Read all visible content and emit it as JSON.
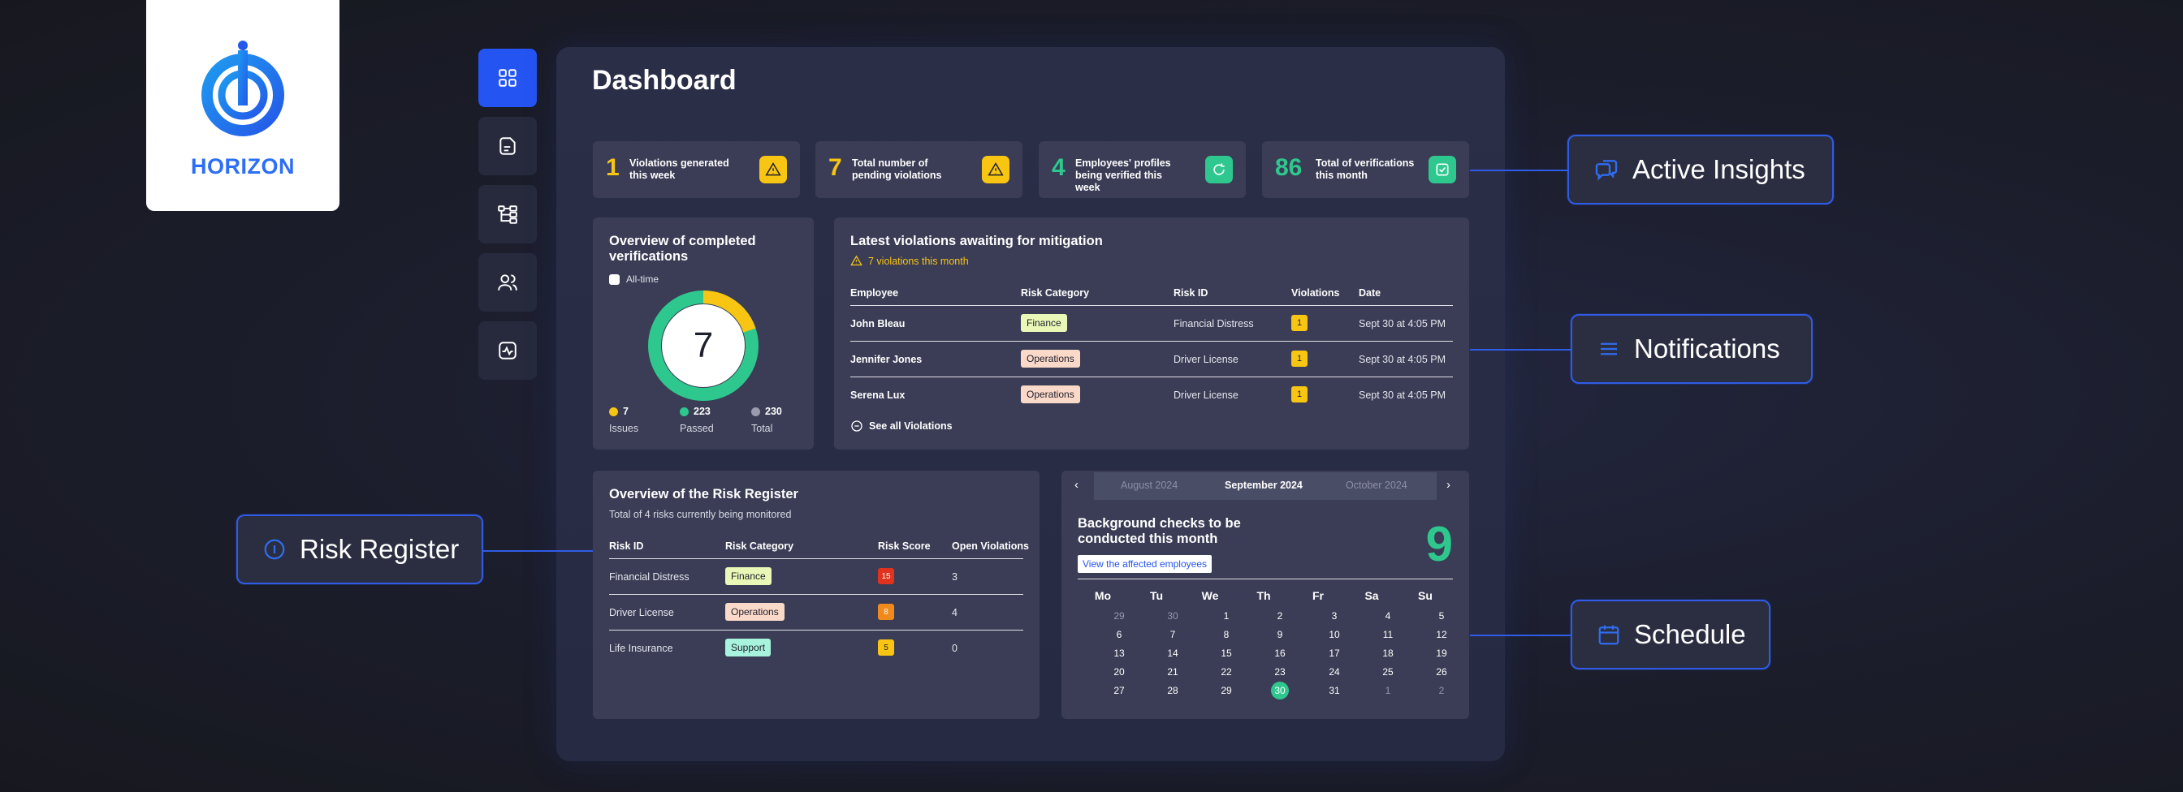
{
  "brand": {
    "name": "HORIZON"
  },
  "nav": [
    {
      "icon": "grid-icon",
      "active": true
    },
    {
      "icon": "document-icon",
      "active": false
    },
    {
      "icon": "hierarchy-icon",
      "active": false
    },
    {
      "icon": "users-icon",
      "active": false
    },
    {
      "icon": "pulse-icon",
      "active": false
    }
  ],
  "dashboard": {
    "title": "Dashboard",
    "stats": [
      {
        "value": "1",
        "label": "Violations generated this week",
        "icon": "warning-icon",
        "color": "#f9c513"
      },
      {
        "value": "7",
        "label": "Total number of pending violations",
        "icon": "warning-icon",
        "color": "#f9c513"
      },
      {
        "value": "4",
        "label": "Employees' profiles being verified this week",
        "icon": "refresh-icon",
        "color": "#2ec88e"
      },
      {
        "value": "86",
        "label": "Total of verifications this month",
        "icon": "check-square-icon",
        "color": "#2ec88e"
      }
    ],
    "overview": {
      "title": "Overview of completed verifications",
      "checkbox_label": "All-time",
      "center_value": "7",
      "legend": [
        {
          "value": "7",
          "label": "Issues",
          "color": "#f9c513"
        },
        {
          "value": "223",
          "label": "Passed",
          "color": "#2ec88e"
        },
        {
          "value": "230",
          "label": "Total",
          "color": "#9a9cae"
        }
      ]
    },
    "violations": {
      "title": "Latest violations awaiting for mitigation",
      "subtitle": "7 violations this month",
      "columns": [
        "Employee",
        "Risk Category",
        "Risk ID",
        "Violations",
        "Date"
      ],
      "rows": [
        {
          "employee": "John Bleau",
          "category": "Finance",
          "risk_id": "Financial Distress",
          "violations": "1",
          "date": "Sept 30 at 4:05 PM"
        },
        {
          "employee": "Jennifer Jones",
          "category": "Operations",
          "risk_id": "Driver License",
          "violations": "1",
          "date": "Sept 30 at 4:05 PM"
        },
        {
          "employee": "Serena Lux",
          "category": "Operations",
          "risk_id": "Driver License",
          "violations": "1",
          "date": "Sept 30 at 4:05 PM"
        }
      ],
      "see_all": "See all Violations"
    },
    "risk_register": {
      "title": "Overview of the Risk Register",
      "subtitle": "Total of 4 risks currently being monitored",
      "columns": [
        "Risk ID",
        "Risk Category",
        "Risk Score",
        "Open Violations"
      ],
      "rows": [
        {
          "risk_id": "Financial Distress",
          "category": "Finance",
          "score": "15",
          "score_color": "#e0321c",
          "open": "3"
        },
        {
          "risk_id": "Driver License",
          "category": "Operations",
          "score": "8",
          "score_color": "#f08a1c",
          "open": "4"
        },
        {
          "risk_id": "Life Insurance",
          "category": "Support",
          "score": "5",
          "score_color": "#f9c513",
          "open": "0"
        }
      ]
    },
    "calendar": {
      "prev_month": "August 2024",
      "current_month": "September 2024",
      "next_month": "October 2024",
      "headline": "Background checks to be conducted this month",
      "button": "View the affected employees",
      "count": "9",
      "weekdays": [
        "Mo",
        "Tu",
        "We",
        "Th",
        "Fr",
        "Sa",
        "Su"
      ],
      "weeks": [
        [
          "29",
          "30",
          "1",
          "2",
          "3",
          "4",
          "5"
        ],
        [
          "6",
          "7",
          "8",
          "9",
          "10",
          "11",
          "12"
        ],
        [
          "13",
          "14",
          "15",
          "16",
          "17",
          "18",
          "19"
        ],
        [
          "20",
          "21",
          "22",
          "23",
          "24",
          "25",
          "26"
        ],
        [
          "27",
          "28",
          "29",
          "30",
          "31",
          "1",
          "2"
        ]
      ],
      "muted": [
        [
          0,
          0
        ],
        [
          0,
          1
        ],
        [
          4,
          5
        ],
        [
          4,
          6
        ]
      ],
      "today": [
        4,
        3
      ]
    }
  },
  "callouts": {
    "active_insights": "Active Insights",
    "notifications": "Notifications",
    "risk_register": "Risk Register",
    "schedule": "Schedule"
  }
}
